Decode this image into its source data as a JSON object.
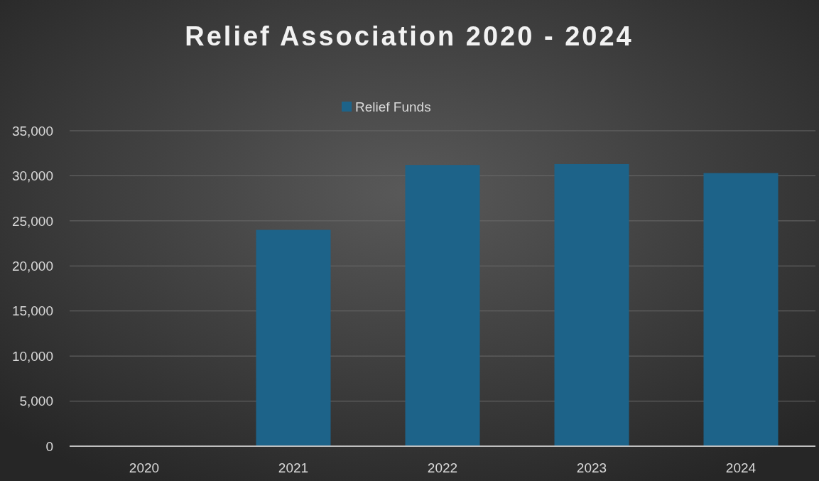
{
  "chart_data": {
    "type": "bar",
    "title": "Relief Association 2020 - 2024",
    "categories": [
      "2020",
      "2021",
      "2022",
      "2023",
      "2024"
    ],
    "series": [
      {
        "name": "Relief Funds",
        "color": "#1d6389",
        "values": [
          0,
          24000,
          31200,
          31300,
          30300
        ]
      }
    ],
    "ylim": [
      0,
      35000
    ],
    "yticks": [
      {
        "value": 0,
        "label": "0"
      },
      {
        "value": 5000,
        "label": "5,000"
      },
      {
        "value": 10000,
        "label": "10,000"
      },
      {
        "value": 15000,
        "label": "15,000"
      },
      {
        "value": 20000,
        "label": "20,000"
      },
      {
        "value": 25000,
        "label": "25,000"
      },
      {
        "value": 30000,
        "label": "30,000"
      },
      {
        "value": 35000,
        "label": "35,000"
      }
    ],
    "grid": "y",
    "legend": "top"
  }
}
